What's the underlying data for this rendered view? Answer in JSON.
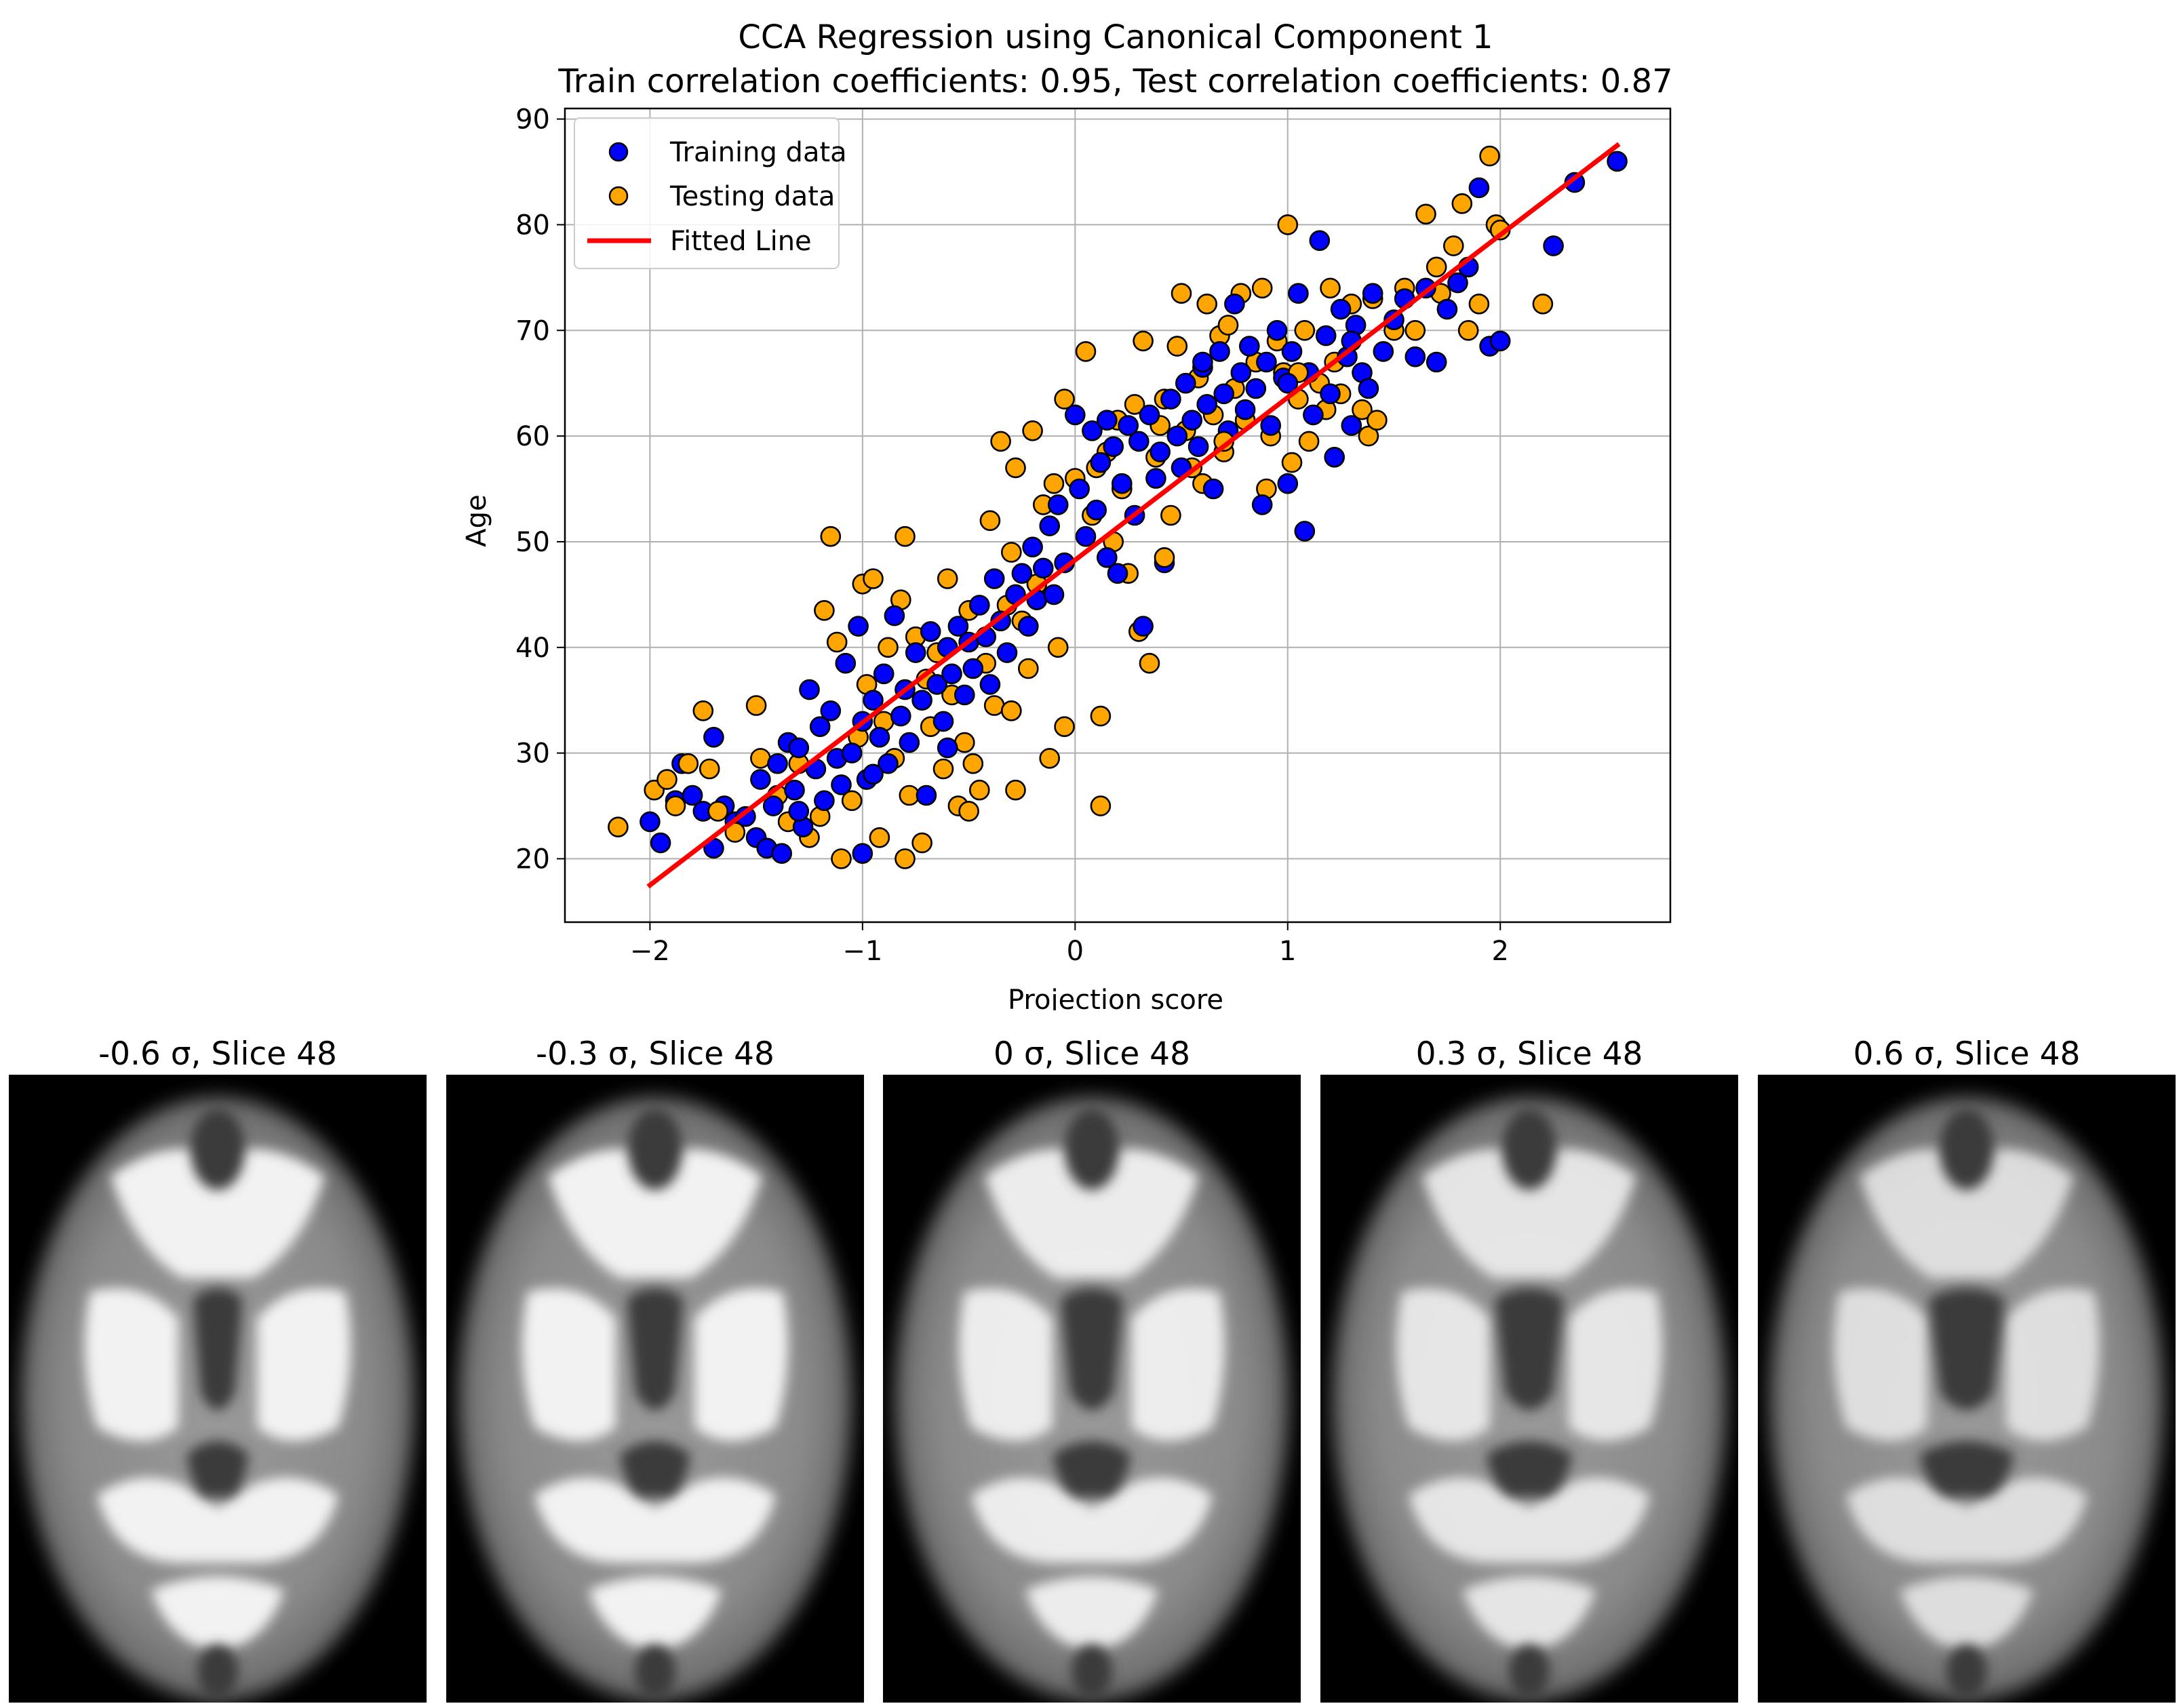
{
  "chart_data": {
    "type": "scatter",
    "title": "CCA Regression using Canonical Component 1",
    "subtitle": "Train correlation coefficients: 0.95, Test correlation coefficients: 0.87",
    "xlabel": "Projection score",
    "ylabel": "Age",
    "xlim": [
      -2.4,
      2.8
    ],
    "ylim": [
      14,
      91
    ],
    "xticks": [
      -2,
      -1,
      0,
      1,
      2
    ],
    "xtick_labels": [
      "−2",
      "−1",
      "0",
      "1",
      "2"
    ],
    "yticks": [
      20,
      30,
      40,
      50,
      60,
      70,
      80,
      90
    ],
    "ytick_labels": [
      "20",
      "30",
      "40",
      "50",
      "60",
      "70",
      "80",
      "90"
    ],
    "grid": true,
    "legend_position": "upper-left",
    "series": [
      {
        "name": "Training data",
        "kind": "scatter",
        "color": "#0000ff",
        "edge_color": "#000000",
        "points": [
          [
            -2.0,
            23.5
          ],
          [
            -1.95,
            21.5
          ],
          [
            -1.88,
            25.5
          ],
          [
            -1.85,
            29.0
          ],
          [
            -1.8,
            26.0
          ],
          [
            -1.75,
            24.5
          ],
          [
            -1.7,
            21.0
          ],
          [
            -1.65,
            25.0
          ],
          [
            -1.6,
            23.5
          ],
          [
            -1.55,
            24.0
          ],
          [
            -1.5,
            22.0
          ],
          [
            -1.48,
            27.5
          ],
          [
            -1.45,
            21.0
          ],
          [
            -1.42,
            25.0
          ],
          [
            -1.4,
            29.0
          ],
          [
            -1.38,
            20.5
          ],
          [
            -1.35,
            31.0
          ],
          [
            -1.32,
            26.5
          ],
          [
            -1.3,
            30.5
          ],
          [
            -1.28,
            23.0
          ],
          [
            -1.25,
            36.0
          ],
          [
            -1.22,
            28.5
          ],
          [
            -1.2,
            32.5
          ],
          [
            -1.18,
            25.5
          ],
          [
            -1.15,
            34.0
          ],
          [
            -1.12,
            29.5
          ],
          [
            -1.1,
            27.0
          ],
          [
            -1.08,
            38.5
          ],
          [
            -1.05,
            30.0
          ],
          [
            -1.02,
            42.0
          ],
          [
            -1.0,
            33.0
          ],
          [
            -1.0,
            20.5
          ],
          [
            -0.98,
            27.5
          ],
          [
            -0.95,
            35.0
          ],
          [
            -0.92,
            31.5
          ],
          [
            -0.9,
            37.5
          ],
          [
            -0.88,
            29.0
          ],
          [
            -0.85,
            43.0
          ],
          [
            -0.82,
            33.5
          ],
          [
            -0.8,
            36.0
          ],
          [
            -0.78,
            31.0
          ],
          [
            -0.75,
            39.5
          ],
          [
            -0.72,
            35.0
          ],
          [
            -0.7,
            26.0
          ],
          [
            -0.68,
            41.5
          ],
          [
            -0.65,
            36.5
          ],
          [
            -0.62,
            33.0
          ],
          [
            -0.6,
            40.0
          ],
          [
            -0.58,
            37.5
          ],
          [
            -0.55,
            42.0
          ],
          [
            -0.52,
            35.5
          ],
          [
            -0.5,
            40.5
          ],
          [
            -0.48,
            38.0
          ],
          [
            -0.45,
            44.0
          ],
          [
            -0.42,
            41.0
          ],
          [
            -0.4,
            36.5
          ],
          [
            -0.38,
            46.5
          ],
          [
            -0.35,
            42.5
          ],
          [
            -0.32,
            39.5
          ],
          [
            -0.3,
            34.0
          ],
          [
            -0.28,
            45.0
          ],
          [
            -0.25,
            47.0
          ],
          [
            -0.22,
            42.0
          ],
          [
            -0.2,
            49.5
          ],
          [
            -0.18,
            44.5
          ],
          [
            -0.15,
            47.5
          ],
          [
            -0.12,
            51.5
          ],
          [
            -0.1,
            45.0
          ],
          [
            -0.08,
            53.5
          ],
          [
            -0.05,
            48.0
          ],
          [
            0.0,
            62.0
          ],
          [
            0.02,
            55.0
          ],
          [
            0.05,
            50.5
          ],
          [
            0.08,
            60.5
          ],
          [
            0.1,
            53.0
          ],
          [
            0.12,
            57.5
          ],
          [
            0.15,
            48.5
          ],
          [
            0.18,
            59.0
          ],
          [
            0.2,
            47.0
          ],
          [
            0.22,
            55.5
          ],
          [
            0.25,
            61.0
          ],
          [
            0.28,
            52.5
          ],
          [
            0.3,
            59.5
          ],
          [
            0.32,
            42.0
          ],
          [
            0.35,
            62.0
          ],
          [
            0.38,
            56.0
          ],
          [
            0.4,
            58.5
          ],
          [
            0.42,
            48.0
          ],
          [
            0.45,
            63.5
          ],
          [
            0.48,
            60.0
          ],
          [
            0.5,
            57.0
          ],
          [
            0.52,
            65.0
          ],
          [
            0.55,
            61.5
          ],
          [
            0.58,
            59.0
          ],
          [
            0.6,
            66.5
          ],
          [
            0.62,
            63.0
          ],
          [
            0.65,
            55.0
          ],
          [
            0.68,
            68.0
          ],
          [
            0.7,
            64.0
          ],
          [
            0.72,
            60.5
          ],
          [
            0.75,
            72.5
          ],
          [
            0.78,
            66.0
          ],
          [
            0.8,
            62.5
          ],
          [
            0.82,
            68.5
          ],
          [
            0.85,
            64.5
          ],
          [
            0.88,
            53.5
          ],
          [
            0.9,
            67.0
          ],
          [
            0.92,
            61.0
          ],
          [
            0.95,
            70.0
          ],
          [
            0.98,
            65.5
          ],
          [
            1.0,
            55.5
          ],
          [
            1.02,
            68.0
          ],
          [
            1.05,
            73.5
          ],
          [
            1.08,
            51.0
          ],
          [
            1.1,
            66.0
          ],
          [
            1.12,
            62.0
          ],
          [
            1.15,
            78.5
          ],
          [
            1.18,
            69.5
          ],
          [
            1.2,
            64.0
          ],
          [
            1.22,
            58.0
          ],
          [
            1.25,
            72.0
          ],
          [
            1.28,
            67.5
          ],
          [
            1.3,
            61.0
          ],
          [
            1.32,
            70.5
          ],
          [
            1.35,
            66.0
          ],
          [
            1.38,
            64.5
          ],
          [
            1.4,
            73.5
          ],
          [
            1.45,
            68.0
          ],
          [
            1.5,
            71.0
          ],
          [
            1.55,
            73.0
          ],
          [
            1.6,
            67.5
          ],
          [
            1.65,
            74.0
          ],
          [
            1.7,
            67.0
          ],
          [
            1.75,
            72.0
          ],
          [
            1.8,
            74.5
          ],
          [
            1.85,
            76.0
          ],
          [
            1.9,
            83.5
          ],
          [
            1.95,
            68.5
          ],
          [
            2.0,
            69.0
          ],
          [
            2.25,
            78.0
          ],
          [
            2.35,
            84.0
          ],
          [
            2.55,
            86.0
          ],
          [
            -1.7,
            31.5
          ],
          [
            -1.3,
            24.5
          ],
          [
            -0.95,
            28.0
          ],
          [
            -0.6,
            30.5
          ],
          [
            0.15,
            61.5
          ],
          [
            0.6,
            67.0
          ],
          [
            1.0,
            65.0
          ],
          [
            1.3,
            69.0
          ]
        ]
      },
      {
        "name": "Testing data",
        "kind": "scatter",
        "color": "#ffa500",
        "edge_color": "#000000",
        "points": [
          [
            -2.15,
            23.0
          ],
          [
            -1.98,
            26.5
          ],
          [
            -1.92,
            27.5
          ],
          [
            -1.88,
            25.0
          ],
          [
            -1.82,
            29.0
          ],
          [
            -1.75,
            34.0
          ],
          [
            -1.72,
            28.5
          ],
          [
            -1.68,
            24.5
          ],
          [
            -1.6,
            22.5
          ],
          [
            -1.5,
            34.5
          ],
          [
            -1.48,
            29.5
          ],
          [
            -1.45,
            21.0
          ],
          [
            -1.4,
            26.0
          ],
          [
            -1.35,
            23.5
          ],
          [
            -1.3,
            29.0
          ],
          [
            -1.25,
            22.0
          ],
          [
            -1.2,
            24.0
          ],
          [
            -1.18,
            43.5
          ],
          [
            -1.15,
            50.5
          ],
          [
            -1.12,
            40.5
          ],
          [
            -1.1,
            20.0
          ],
          [
            -1.05,
            25.5
          ],
          [
            -1.02,
            31.5
          ],
          [
            -1.0,
            46.0
          ],
          [
            -0.98,
            36.5
          ],
          [
            -0.95,
            46.5
          ],
          [
            -0.92,
            22.0
          ],
          [
            -0.9,
            33.0
          ],
          [
            -0.88,
            40.0
          ],
          [
            -0.85,
            29.5
          ],
          [
            -0.82,
            44.5
          ],
          [
            -0.8,
            50.5
          ],
          [
            -0.8,
            20.0
          ],
          [
            -0.78,
            26.0
          ],
          [
            -0.75,
            41.0
          ],
          [
            -0.72,
            21.5
          ],
          [
            -0.7,
            37.0
          ],
          [
            -0.68,
            32.5
          ],
          [
            -0.65,
            39.5
          ],
          [
            -0.62,
            28.5
          ],
          [
            -0.6,
            46.5
          ],
          [
            -0.58,
            35.5
          ],
          [
            -0.55,
            25.0
          ],
          [
            -0.52,
            31.0
          ],
          [
            -0.5,
            43.5
          ],
          [
            -0.48,
            29.0
          ],
          [
            -0.45,
            26.5
          ],
          [
            -0.42,
            38.5
          ],
          [
            -0.4,
            52.0
          ],
          [
            -0.38,
            34.5
          ],
          [
            -0.35,
            59.5
          ],
          [
            -0.32,
            44.0
          ],
          [
            -0.3,
            49.0
          ],
          [
            -0.28,
            57.0
          ],
          [
            -0.25,
            42.5
          ],
          [
            -0.22,
            38.0
          ],
          [
            -0.2,
            60.5
          ],
          [
            -0.18,
            46.0
          ],
          [
            -0.15,
            53.5
          ],
          [
            -0.12,
            29.5
          ],
          [
            -0.1,
            55.5
          ],
          [
            -0.08,
            40.0
          ],
          [
            -0.05,
            63.5
          ],
          [
            -0.05,
            32.5
          ],
          [
            0.0,
            56.0
          ],
          [
            0.05,
            68.0
          ],
          [
            0.08,
            52.5
          ],
          [
            0.1,
            57.0
          ],
          [
            0.12,
            33.5
          ],
          [
            0.12,
            25.0
          ],
          [
            0.15,
            58.5
          ],
          [
            0.18,
            50.0
          ],
          [
            0.2,
            61.5
          ],
          [
            0.22,
            55.0
          ],
          [
            0.25,
            47.0
          ],
          [
            0.28,
            63.0
          ],
          [
            0.3,
            41.5
          ],
          [
            0.32,
            69.0
          ],
          [
            0.35,
            38.5
          ],
          [
            0.38,
            58.0
          ],
          [
            0.4,
            61.0
          ],
          [
            0.42,
            63.5
          ],
          [
            0.45,
            52.5
          ],
          [
            0.48,
            68.5
          ],
          [
            0.5,
            73.5
          ],
          [
            0.52,
            60.5
          ],
          [
            0.55,
            57.0
          ],
          [
            0.58,
            65.5
          ],
          [
            0.6,
            55.5
          ],
          [
            0.62,
            72.5
          ],
          [
            0.65,
            62.0
          ],
          [
            0.68,
            69.5
          ],
          [
            0.7,
            58.5
          ],
          [
            0.72,
            70.5
          ],
          [
            0.75,
            64.5
          ],
          [
            0.78,
            73.5
          ],
          [
            0.8,
            61.5
          ],
          [
            0.85,
            67.0
          ],
          [
            0.88,
            74.0
          ],
          [
            0.9,
            55.0
          ],
          [
            0.92,
            60.0
          ],
          [
            0.95,
            69.0
          ],
          [
            0.98,
            66.0
          ],
          [
            1.0,
            80.0
          ],
          [
            1.02,
            57.5
          ],
          [
            1.05,
            63.5
          ],
          [
            1.08,
            70.0
          ],
          [
            1.1,
            59.5
          ],
          [
            1.15,
            65.0
          ],
          [
            1.18,
            62.5
          ],
          [
            1.2,
            74.0
          ],
          [
            1.22,
            67.0
          ],
          [
            1.25,
            64.0
          ],
          [
            1.3,
            72.5
          ],
          [
            1.35,
            62.5
          ],
          [
            1.38,
            60.0
          ],
          [
            1.4,
            73.0
          ],
          [
            1.42,
            61.5
          ],
          [
            1.5,
            70.0
          ],
          [
            1.55,
            74.0
          ],
          [
            1.6,
            70.0
          ],
          [
            1.65,
            81.0
          ],
          [
            1.7,
            76.0
          ],
          [
            1.72,
            73.5
          ],
          [
            1.78,
            78.0
          ],
          [
            1.82,
            82.0
          ],
          [
            1.85,
            70.0
          ],
          [
            1.9,
            72.5
          ],
          [
            1.95,
            86.5
          ],
          [
            1.98,
            80.0
          ],
          [
            2.0,
            79.5
          ],
          [
            2.2,
            72.5
          ],
          [
            1.05,
            66.0
          ],
          [
            0.7,
            59.5
          ],
          [
            -0.28,
            26.5
          ],
          [
            -0.5,
            24.5
          ],
          [
            -0.3,
            34.0
          ],
          [
            0.42,
            48.5
          ]
        ]
      },
      {
        "name": "Fitted Line",
        "kind": "line",
        "color": "#ff0000",
        "x": [
          -2.0,
          2.55
        ],
        "y": [
          17.5,
          87.5
        ]
      }
    ]
  },
  "slices": [
    {
      "label": "-0.6 σ, Slice 48",
      "sigma": -0.6
    },
    {
      "label": "-0.3 σ, Slice 48",
      "sigma": -0.3
    },
    {
      "label": "0 σ, Slice 48",
      "sigma": 0
    },
    {
      "label": "0.3 σ, Slice 48",
      "sigma": 0.3
    },
    {
      "label": "0.6 σ, Slice 48",
      "sigma": 0.6
    }
  ]
}
